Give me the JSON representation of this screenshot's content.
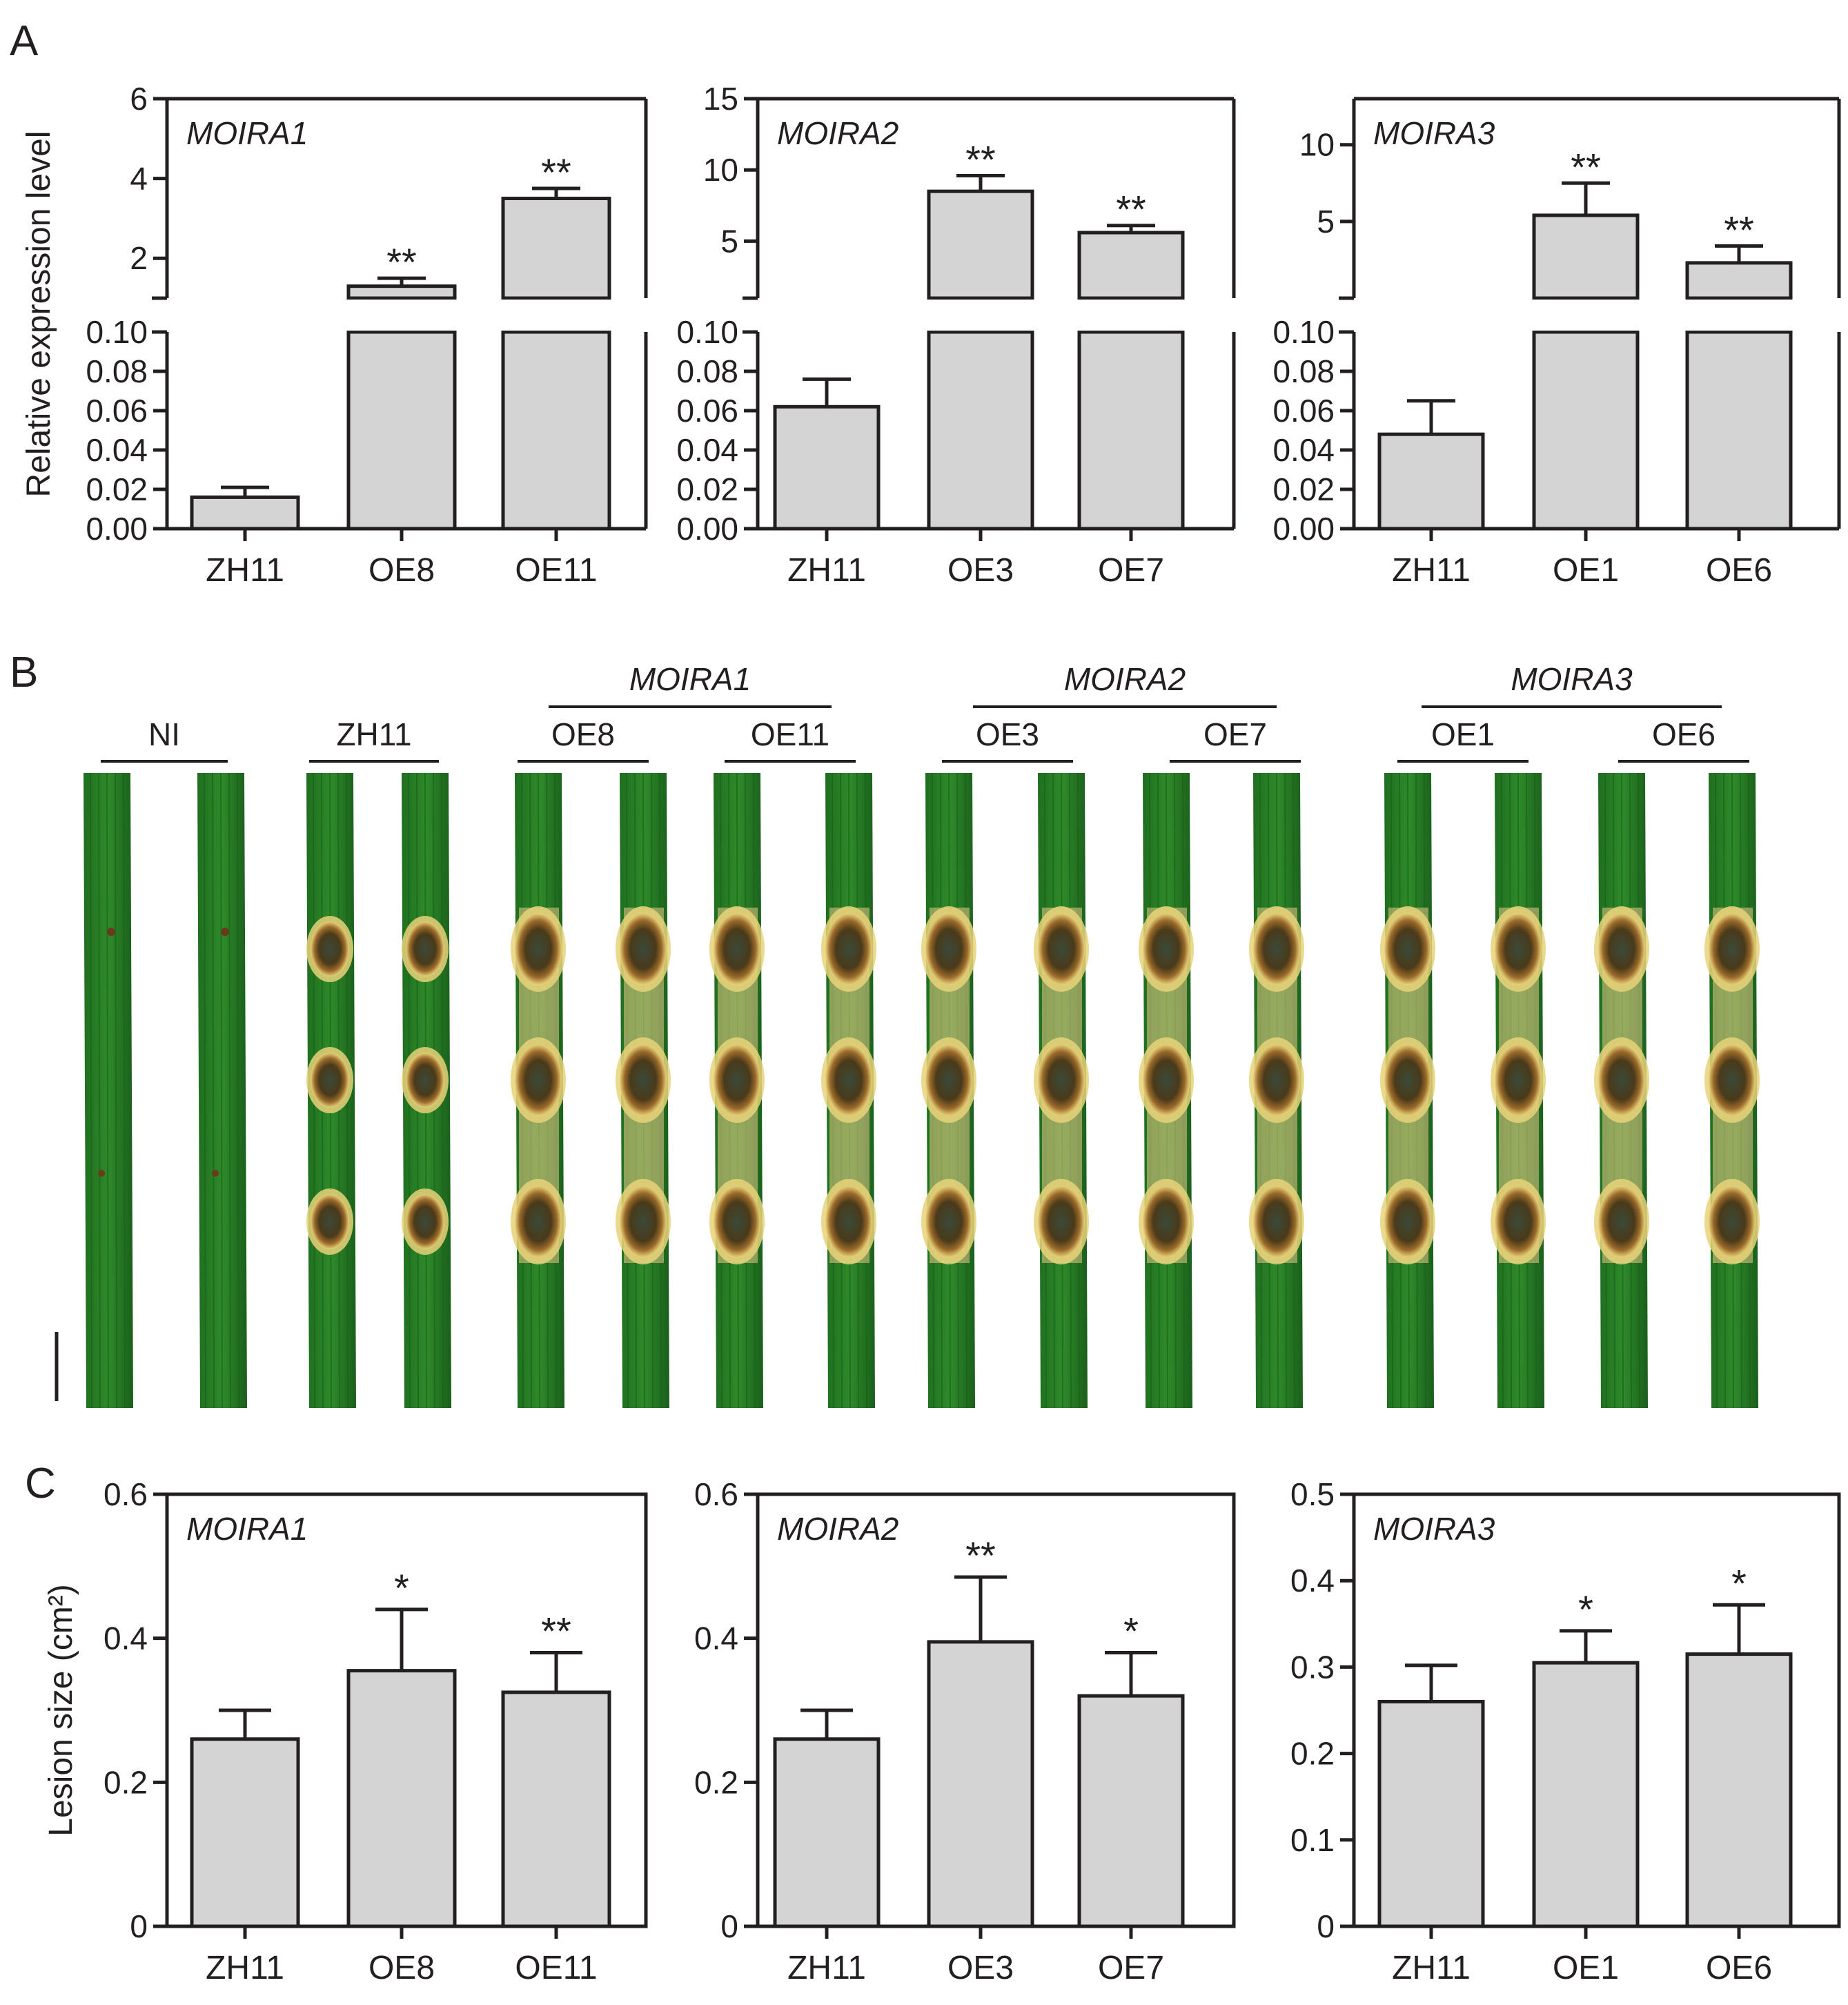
{
  "panels": {
    "A": "A",
    "B": "B",
    "C": "C"
  },
  "colors": {
    "bar_fill": "#d4d4d4",
    "axis": "#231f20",
    "leaf_green": "#2f8a2a",
    "lesion": "#4a3a1a",
    "halo": "#e8d27a"
  },
  "chart_data": [
    {
      "id": "A1",
      "panel": "A",
      "type": "bar",
      "broken_axis": true,
      "title": "MOIRA1",
      "ylabel": "Relative expression level",
      "categories": [
        "ZH11",
        "OE8",
        "OE11"
      ],
      "values": [
        0.016,
        1.3,
        3.5
      ],
      "errors": [
        0.005,
        0.2,
        0.25
      ],
      "significance": [
        "",
        "**",
        "**"
      ],
      "lower_ylim": [
        0,
        0.1
      ],
      "lower_ticks": [
        "0.00",
        "0.02",
        "0.04",
        "0.06",
        "0.08",
        "0.10"
      ],
      "upper_ylim": [
        1,
        6
      ],
      "upper_ticks": [
        "2",
        "4",
        "6"
      ]
    },
    {
      "id": "A2",
      "panel": "A",
      "type": "bar",
      "broken_axis": true,
      "title": "MOIRA2",
      "ylabel": "",
      "categories": [
        "ZH11",
        "OE3",
        "OE7"
      ],
      "values": [
        0.062,
        8.5,
        5.6
      ],
      "errors": [
        0.014,
        1.1,
        0.5
      ],
      "significance": [
        "",
        "**",
        "**"
      ],
      "lower_ylim": [
        0,
        0.1
      ],
      "lower_ticks": [
        "0.00",
        "0.02",
        "0.04",
        "0.06",
        "0.08",
        "0.10"
      ],
      "upper_ylim": [
        1,
        15
      ],
      "upper_ticks": [
        "5",
        "10",
        "15"
      ]
    },
    {
      "id": "A3",
      "panel": "A",
      "type": "bar",
      "broken_axis": true,
      "title": "MOIRA3",
      "ylabel": "",
      "categories": [
        "ZH11",
        "OE1",
        "OE6"
      ],
      "values": [
        0.048,
        5.4,
        2.3
      ],
      "errors": [
        0.017,
        2.1,
        1.1
      ],
      "significance": [
        "",
        "**",
        "**"
      ],
      "lower_ylim": [
        0,
        0.1
      ],
      "lower_ticks": [
        "0.00",
        "0.02",
        "0.04",
        "0.06",
        "0.08",
        "0.10"
      ],
      "upper_ylim": [
        0,
        13
      ],
      "upper_ticks": [
        "5",
        "10"
      ]
    },
    {
      "id": "C1",
      "panel": "C",
      "type": "bar",
      "title": "MOIRA1",
      "ylabel": "Lesion size (cm²)",
      "categories": [
        "ZH11",
        "OE8",
        "OE11"
      ],
      "values": [
        0.26,
        0.355,
        0.325
      ],
      "errors": [
        0.04,
        0.085,
        0.055
      ],
      "significance": [
        "",
        "*",
        "**"
      ],
      "ylim": [
        0,
        0.6
      ],
      "ticks": [
        "0",
        "0.2",
        "0.4",
        "0.6"
      ]
    },
    {
      "id": "C2",
      "panel": "C",
      "type": "bar",
      "title": "MOIRA2",
      "ylabel": "",
      "categories": [
        "ZH11",
        "OE3",
        "OE7"
      ],
      "values": [
        0.26,
        0.395,
        0.32
      ],
      "errors": [
        0.04,
        0.09,
        0.06
      ],
      "significance": [
        "",
        "**",
        "*"
      ],
      "ylim": [
        0,
        0.6
      ],
      "ticks": [
        "0",
        "0.2",
        "0.4",
        "0.6"
      ]
    },
    {
      "id": "C3",
      "panel": "C",
      "type": "bar",
      "title": "MOIRA3",
      "ylabel": "",
      "categories": [
        "ZH11",
        "OE1",
        "OE6"
      ],
      "values": [
        0.26,
        0.305,
        0.315
      ],
      "errors": [
        0.042,
        0.037,
        0.057
      ],
      "significance": [
        "",
        "*",
        "*"
      ],
      "ylim": [
        0,
        0.5
      ],
      "ticks": [
        "0",
        "0.1",
        "0.2",
        "0.3",
        "0.4",
        "0.5"
      ]
    }
  ],
  "photo": {
    "groups": [
      "MOIRA1",
      "MOIRA2",
      "MOIRA3"
    ],
    "labels": [
      "NI",
      "ZH11",
      "OE8",
      "OE11",
      "OE3",
      "OE7",
      "OE1",
      "OE6"
    ],
    "lesions": [
      "none",
      "small",
      "large",
      "large",
      "large",
      "large",
      "large",
      "large"
    ]
  }
}
